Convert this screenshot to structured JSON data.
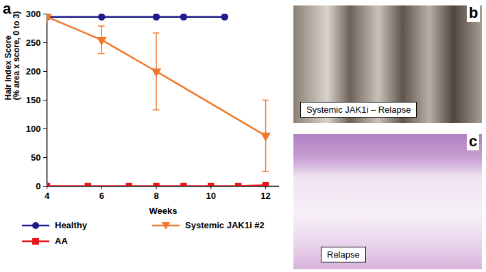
{
  "chart_data": {
    "type": "line",
    "annotations": [
      "a"
    ],
    "xlabel": "Weeks",
    "ylabel": [
      "Hair Index Score",
      "(% area x score, 0 to 3)"
    ],
    "xlim": [
      4,
      12.5
    ],
    "xticks": [
      4,
      6,
      8,
      10,
      12
    ],
    "ylim": [
      0,
      300
    ],
    "yticks": [
      0,
      50,
      100,
      150,
      200,
      250,
      300
    ],
    "legend": "bottom",
    "series": [
      {
        "name": "Healthy",
        "color": "#1c1c8a",
        "marker": "circle",
        "x": [
          4,
          6,
          8,
          9,
          10.5
        ],
        "values": [
          295,
          295,
          295,
          295,
          295
        ]
      },
      {
        "name": "Systemic JAK1i #2",
        "color": "#f07828",
        "marker": "triangle-down",
        "x": [
          4,
          6,
          8,
          12
        ],
        "values": [
          295,
          255,
          200,
          88
        ],
        "error": [
          0,
          24,
          67,
          62
        ]
      },
      {
        "name": "AA",
        "color": "#e8141b",
        "marker": "square",
        "x": [
          4,
          5.5,
          7,
          8,
          9,
          10,
          11,
          12
        ],
        "values": [
          0,
          0,
          0,
          0,
          0,
          0,
          0,
          2
        ]
      }
    ]
  },
  "panels": [
    {
      "label": "b",
      "caption": "Systemic JAK1i – Relapse"
    },
    {
      "label": "c",
      "caption": "Relapse"
    }
  ]
}
